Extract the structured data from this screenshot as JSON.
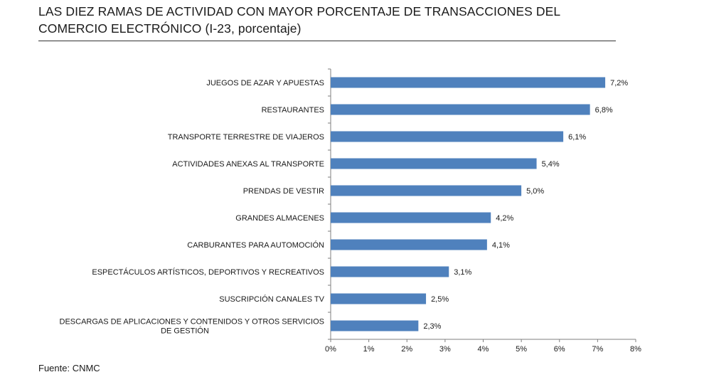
{
  "title": "LAS DIEZ RAMAS DE ACTIVIDAD CON MAYOR PORCENTAJE DE TRANSACCIONES DEL COMERCIO ELECTRÓNICO (I-23, porcentaje)",
  "source": "Fuente: CNMC",
  "chart_data": {
    "type": "bar",
    "orientation": "horizontal",
    "categories": [
      [
        "JUEGOS DE AZAR Y APUESTAS"
      ],
      [
        "RESTAURANTES"
      ],
      [
        "TRANSPORTE TERRESTRE DE VIAJEROS"
      ],
      [
        "ACTIVIDADES ANEXAS AL TRANSPORTE"
      ],
      [
        "PRENDAS DE VESTIR"
      ],
      [
        "GRANDES ALMACENES"
      ],
      [
        "CARBURANTES PARA AUTOMOCIÓN"
      ],
      [
        "ESPECTÁCULOS ARTÍSTICOS, DEPORTIVOS Y RECREATIVOS"
      ],
      [
        "SUSCRIPCIÓN CANALES TV"
      ],
      [
        "DESCARGAS DE APLICACIONES Y CONTENIDOS Y OTROS SERVICIOS",
        "DE GESTIÓN"
      ]
    ],
    "values": [
      7.2,
      6.8,
      6.1,
      5.4,
      5.0,
      4.2,
      4.1,
      3.1,
      2.5,
      2.3
    ],
    "value_labels": [
      "7,2%",
      "6,8%",
      "6,1%",
      "5,4%",
      "5,0%",
      "4,2%",
      "4,1%",
      "3,1%",
      "2,5%",
      "2,3%"
    ],
    "xlim": [
      0,
      8
    ],
    "xticks": [
      0,
      1,
      2,
      3,
      4,
      5,
      6,
      7,
      8
    ],
    "xtick_labels": [
      "0%",
      "1%",
      "2%",
      "3%",
      "4%",
      "5%",
      "6%",
      "7%",
      "8%"
    ],
    "bar_color": "#4f81bd",
    "grid": false,
    "legend": "none"
  }
}
